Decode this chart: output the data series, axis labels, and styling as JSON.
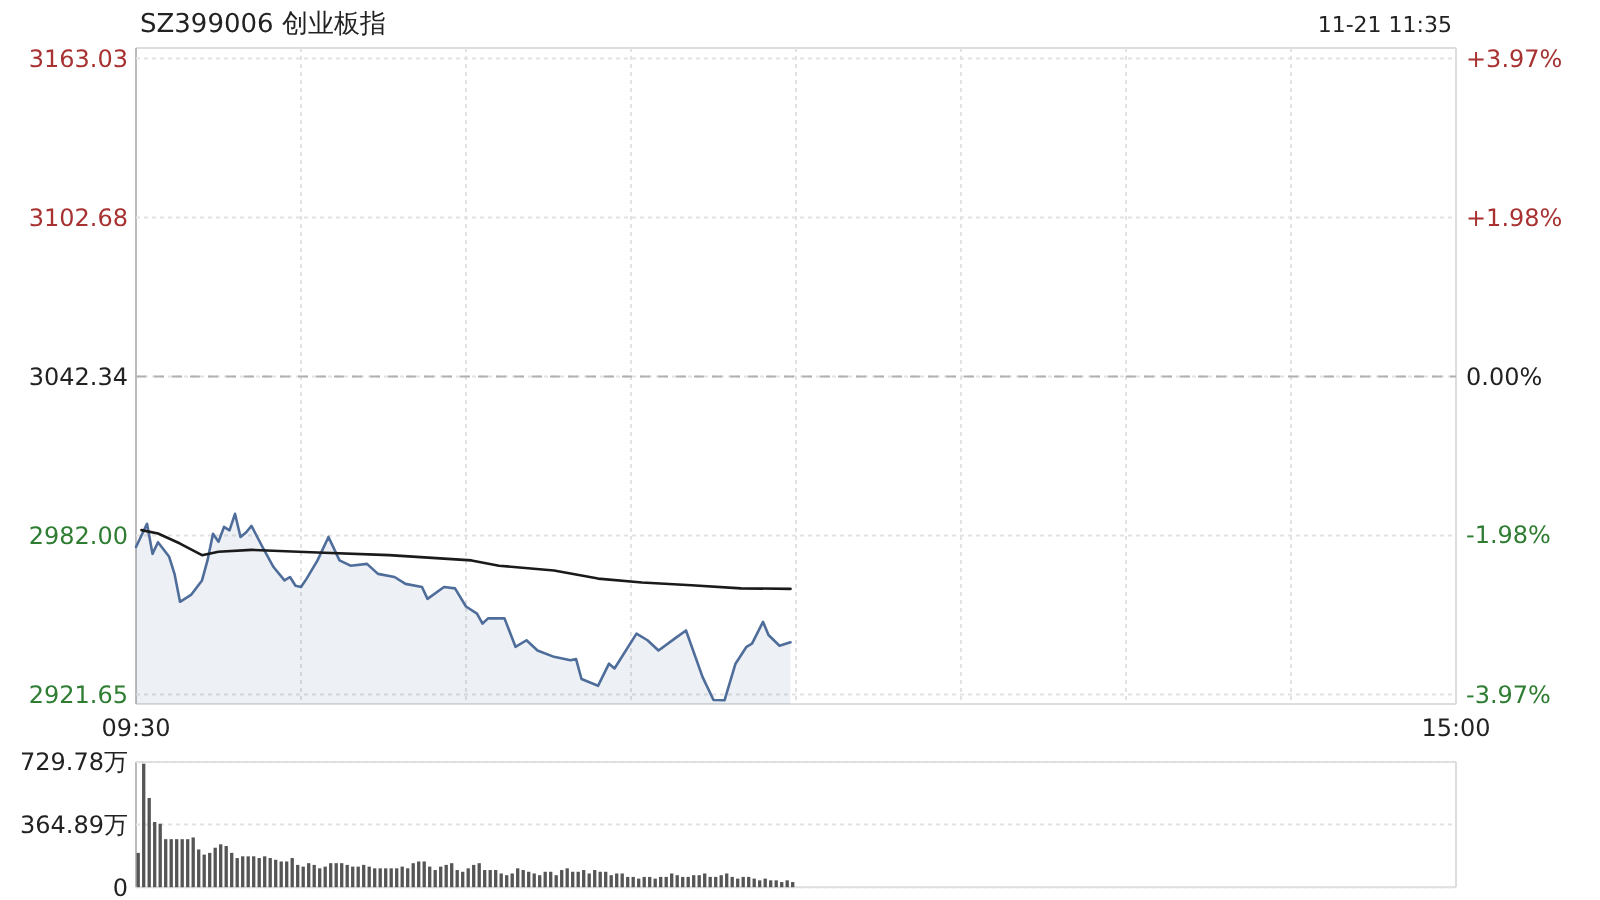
{
  "chart_data": [
    {
      "type": "area",
      "title": "SZ399006 创业板指",
      "annotations": [
        "11-21 11:35"
      ],
      "categories": [
        "09:30",
        null,
        null,
        null,
        null,
        null,
        null,
        null,
        null,
        null,
        null,
        null,
        null,
        null,
        null,
        null,
        null,
        null,
        null,
        null,
        null,
        null,
        null,
        null,
        null,
        null,
        null,
        null,
        null,
        null,
        null,
        null,
        null,
        null,
        null,
        null,
        null,
        null,
        null,
        null,
        null,
        null,
        null,
        null,
        null,
        null,
        null,
        null,
        null,
        null,
        null,
        null,
        null,
        null,
        null,
        null,
        null,
        null,
        null,
        null,
        null,
        null,
        null,
        null,
        null,
        null,
        null,
        null,
        null,
        null,
        null,
        null,
        null,
        null,
        null,
        null,
        null,
        null,
        null,
        null,
        null,
        null,
        null,
        null,
        null,
        null,
        null,
        null,
        null,
        null,
        null,
        null,
        null,
        null,
        null,
        null,
        null,
        null,
        null,
        null,
        null,
        null,
        null,
        null,
        null,
        null,
        null,
        null,
        null,
        null,
        null,
        null,
        null,
        null,
        null,
        null,
        null,
        null,
        null,
        null,
        null,
        null,
        null,
        null,
        null,
        null,
        null,
        null,
        null,
        null,
        null,
        null,
        null,
        null,
        null,
        null,
        null,
        null,
        null,
        null,
        null,
        null,
        null,
        null,
        null,
        null,
        null,
        null,
        null,
        null,
        null,
        null,
        null,
        null,
        null,
        null,
        null,
        null,
        null,
        null,
        null,
        null,
        null,
        null,
        null,
        null,
        null,
        null,
        null,
        null,
        null,
        null,
        null,
        null,
        null,
        null,
        null,
        null,
        null,
        null,
        null,
        null,
        null,
        null,
        null,
        null,
        null,
        null,
        null,
        null,
        null,
        null,
        null,
        null,
        null,
        null,
        null,
        null,
        null,
        null,
        null,
        null,
        null,
        null,
        null,
        null,
        null,
        null,
        null,
        null,
        null,
        null,
        null,
        null,
        null,
        null,
        null,
        null,
        null,
        null,
        null,
        null,
        null,
        null,
        null,
        null,
        null,
        null,
        null,
        null,
        null,
        null,
        null,
        null,
        null,
        null,
        null,
        null,
        null,
        null,
        "15:00"
      ],
      "ylim": [
        2918,
        3167
      ],
      "yticks": [
        2921.65,
        {
          "value": 2982,
          "label": "2982.00"
        },
        3042.34,
        3102.68,
        3163.03
      ],
      "y2lim": [
        -4.09,
        4.1
      ],
      "y2ticks": [
        {
          "value": -3.97,
          "label": "-3.97%"
        },
        {
          "value": -1.98,
          "label": "-1.98%"
        },
        {
          "value": 0,
          "label": "0.00%"
        },
        {
          "value": 1.98,
          "label": "+1.98%"
        },
        {
          "value": 3.97,
          "label": "+3.97%"
        }
      ],
      "grid": true,
      "ref_lines": [
        {
          "axis": "y",
          "value": 3042.34,
          "color": "#b0b0b0",
          "line_style": "dashed"
        }
      ],
      "series": [
        {
          "color": "#4f6d9a",
          "values": [
            2977.6,
            null,
            2986.4,
            2975.0,
            2979.4,
            null,
            2974.0,
            2967.4,
            2956.8,
            null,
            2959.4,
            null,
            2964.9,
            2972.5,
            2982.6,
            2979.6,
            2985.2,
            2983.9,
            2990.2,
            2981.4,
            2983.1,
            2985.6,
            null,
            2977.6,
            null,
            2970.0,
            null,
            2964.9,
            2966.2,
            2962.9,
            2962.4,
            2965.5,
            null,
            2972.5,
            null,
            2981.4,
            null,
            2972.5,
            null,
            2970.5,
            null,
            null,
            2971.2,
            null,
            2967.4,
            null,
            null,
            2966.2,
            null,
            2963.6,
            null,
            null,
            2962.4,
            2957.9,
            null,
            null,
            2962.4,
            null,
            2961.9,
            null,
            2955.0,
            null,
            2952.3,
            2948.5,
            2950.5,
            null,
            null,
            2950.5,
            null,
            2939.7,
            null,
            2942.2,
            null,
            2938.3,
            null,
            null,
            2935.9,
            null,
            null,
            2934.6,
            2935.1,
            2927.5,
            null,
            null,
            2924.9,
            null,
            2933.3,
            2931.5,
            null,
            null,
            null,
            2944.7,
            null,
            2942.2,
            null,
            2938.3,
            null,
            null,
            2942.9,
            null,
            2945.9,
            null,
            null,
            2928.3,
            null,
            2919.5,
            null,
            2919.4,
            null,
            2933.3,
            null,
            2939.7,
            2940.9,
            null,
            2949.2,
            2944.2,
            null,
            2940.1,
            null,
            2941.4,
            null,
            null,
            null,
            null,
            null,
            null,
            null,
            null,
            null,
            null,
            null,
            null,
            null,
            null,
            null,
            null,
            null,
            null,
            null,
            null,
            null,
            null,
            null,
            null,
            null,
            null,
            null,
            null,
            null,
            null,
            null,
            null,
            null,
            null,
            null,
            null,
            null,
            null,
            null,
            null,
            null,
            null,
            null,
            null,
            null,
            null,
            null,
            null,
            null,
            null,
            null,
            null,
            null,
            null,
            null,
            null,
            null,
            null,
            null,
            null,
            null,
            null,
            null,
            null,
            null,
            null,
            null,
            null,
            null,
            null,
            null,
            null,
            null,
            null,
            null,
            null,
            null,
            null,
            null,
            null,
            null,
            null,
            null,
            null,
            null,
            null,
            null,
            null,
            null,
            null,
            null,
            null,
            null,
            null,
            null,
            null,
            null,
            null,
            null,
            null,
            null,
            null,
            null,
            null,
            null,
            null,
            null,
            null,
            null,
            null,
            null,
            null,
            null,
            null,
            null,
            null,
            null,
            null,
            null,
            null,
            null
          ]
        },
        {
          "type": "line",
          "color": "#1a1a1a",
          "values": [
            null,
            2984.0,
            null,
            null,
            2982.7,
            null,
            null,
            null,
            2978.9,
            null,
            null,
            null,
            2974.5,
            null,
            null,
            2975.8,
            null,
            null,
            null,
            null,
            null,
            2976.5,
            null,
            null,
            null,
            null,
            null,
            null,
            null,
            null,
            null,
            null,
            null,
            2975.5,
            null,
            null,
            null,
            null,
            null,
            null,
            null,
            null,
            null,
            null,
            null,
            null,
            2974.5,
            null,
            null,
            null,
            null,
            null,
            null,
            null,
            null,
            null,
            null,
            null,
            null,
            null,
            null,
            2972.5,
            null,
            null,
            null,
            null,
            2970.5,
            null,
            null,
            null,
            null,
            null,
            null,
            null,
            null,
            null,
            2968.7,
            null,
            null,
            null,
            null,
            null,
            null,
            null,
            2965.6,
            null,
            null,
            null,
            null,
            null,
            null,
            null,
            2964.1,
            null,
            null,
            null,
            null,
            null,
            null,
            null,
            null,
            2963.1,
            null,
            null,
            null,
            null,
            null,
            null,
            null,
            null,
            2961.9,
            null,
            null,
            null,
            null,
            null,
            null,
            null,
            null,
            2961.7,
            null,
            null,
            null,
            null,
            null,
            null,
            null,
            null,
            null,
            null,
            null,
            null,
            null,
            null,
            null,
            null,
            null,
            null,
            null,
            null,
            null,
            null,
            null,
            null,
            null,
            null,
            null,
            null,
            null,
            null,
            null,
            null,
            null,
            null,
            null,
            null,
            null,
            null,
            null,
            null,
            null,
            null,
            null,
            null,
            null,
            null,
            null,
            null,
            null,
            null,
            null,
            null,
            null,
            null,
            null,
            null,
            null,
            null,
            null,
            null,
            null,
            null,
            null,
            null,
            null,
            null,
            null,
            null,
            null,
            null,
            null,
            null,
            null,
            null,
            null,
            null,
            null,
            null,
            null,
            null,
            null,
            null,
            null,
            null,
            null,
            null,
            null,
            null,
            null,
            null,
            null,
            null,
            null,
            null,
            null,
            null,
            null,
            null,
            null,
            null,
            null,
            null,
            null,
            null,
            null,
            null,
            null,
            null,
            null,
            null,
            null,
            null,
            null,
            null,
            null,
            null,
            null,
            null,
            null,
            null,
            null
          ]
        }
      ]
    },
    {
      "type": "bar",
      "color": "#555555",
      "tick_labels": "y",
      "grid": true,
      "categories": [
        null,
        null,
        null,
        null,
        null,
        null,
        null,
        null,
        null,
        null,
        null,
        null,
        null,
        null,
        null,
        null,
        null,
        null,
        null,
        null,
        null,
        null,
        null,
        null,
        null,
        null,
        null,
        null,
        null,
        null,
        null,
        null,
        null,
        null,
        null,
        null,
        null,
        null,
        null,
        null,
        null,
        null,
        null,
        null,
        null,
        null,
        null,
        null,
        null,
        null,
        null,
        null,
        null,
        null,
        null,
        null,
        null,
        null,
        null,
        null,
        null,
        null,
        null,
        null,
        null,
        null,
        null,
        null,
        null,
        null,
        null,
        null,
        null,
        null,
        null,
        null,
        null,
        null,
        null,
        null,
        null,
        null,
        null,
        null,
        null,
        null,
        null,
        null,
        null,
        null,
        null,
        null,
        null,
        null,
        null,
        null,
        null,
        null,
        null,
        null,
        null,
        null,
        null,
        null,
        null,
        null,
        null,
        null,
        null,
        null,
        null,
        null,
        null,
        null,
        null,
        null,
        null,
        null,
        null,
        null,
        null,
        null,
        null,
        null,
        null,
        null,
        null,
        null,
        null,
        null,
        null,
        null,
        null,
        null,
        null,
        null,
        null,
        null,
        null,
        null,
        null,
        null,
        null,
        null,
        null,
        null,
        null,
        null,
        null,
        null,
        null,
        null,
        null,
        null,
        null,
        null,
        null,
        null,
        null,
        null,
        null,
        null,
        null,
        null,
        null,
        null,
        null,
        null,
        null,
        null,
        null,
        null,
        null,
        null,
        null,
        null,
        null,
        null,
        null,
        null,
        null,
        null,
        null,
        null,
        null,
        null,
        null,
        null,
        null,
        null,
        null,
        null,
        null,
        null,
        null,
        null,
        null,
        null,
        null,
        null,
        null,
        null,
        null,
        null,
        null,
        null,
        null,
        null,
        null,
        null,
        null,
        null,
        null,
        null,
        null,
        null,
        null,
        null,
        null,
        null,
        null,
        null,
        null,
        null,
        null,
        null,
        null,
        null,
        null,
        null,
        null,
        null,
        null,
        null,
        null,
        null,
        null,
        null,
        null,
        null,
        null
      ],
      "ylim": [
        0,
        729.78
      ],
      "yticks": [
        0,
        {
          "value": 364.89,
          "label": "364.89万"
        },
        {
          "value": 729.78,
          "label": "729.78万"
        }
      ],
      "values": [
        200,
        720,
        520,
        380,
        370,
        280,
        280,
        280,
        280,
        280,
        290,
        220,
        190,
        200,
        230,
        250,
        240,
        200,
        170,
        180,
        180,
        180,
        170,
        180,
        170,
        160,
        150,
        150,
        170,
        130,
        120,
        140,
        130,
        110,
        120,
        140,
        140,
        140,
        130,
        120,
        120,
        130,
        120,
        110,
        110,
        110,
        110,
        110,
        120,
        110,
        140,
        150,
        150,
        120,
        100,
        120,
        130,
        140,
        100,
        90,
        110,
        130,
        140,
        100,
        100,
        100,
        80,
        70,
        80,
        110,
        100,
        90,
        80,
        70,
        90,
        90,
        70,
        100,
        110,
        90,
        90,
        100,
        80,
        100,
        90,
        90,
        70,
        80,
        80,
        60,
        60,
        50,
        60,
        60,
        50,
        60,
        60,
        80,
        70,
        60,
        60,
        70,
        70,
        80,
        60,
        60,
        70,
        80,
        60,
        50,
        60,
        60,
        50,
        40,
        50,
        40,
        40,
        30,
        40,
        30,
        null,
        null,
        null,
        null,
        null,
        null,
        null,
        null,
        null,
        null,
        null,
        null,
        null,
        null,
        null,
        null,
        null,
        null,
        null,
        null,
        null,
        null,
        null,
        null,
        null,
        null,
        null,
        null,
        null,
        null,
        null,
        null,
        null,
        null,
        null,
        null,
        null,
        null,
        null,
        null,
        null,
        null,
        null,
        null,
        null,
        null,
        null,
        null,
        null,
        null,
        null,
        null,
        null,
        null,
        null,
        null,
        null,
        null,
        null,
        null,
        null,
        null,
        null,
        null,
        null,
        null,
        null,
        null,
        null,
        null,
        null,
        null,
        null,
        null,
        null,
        null,
        null,
        null,
        null,
        null,
        null,
        null,
        null,
        null,
        null,
        null,
        null,
        null,
        null,
        null,
        null,
        null,
        null,
        null,
        null,
        null,
        null,
        null,
        null,
        null,
        null,
        null,
        null,
        null,
        null,
        null,
        null,
        null,
        null,
        null,
        null,
        null,
        null,
        null,
        null,
        null,
        null,
        null,
        null,
        null,
        null
      ]
    }
  ]
}
